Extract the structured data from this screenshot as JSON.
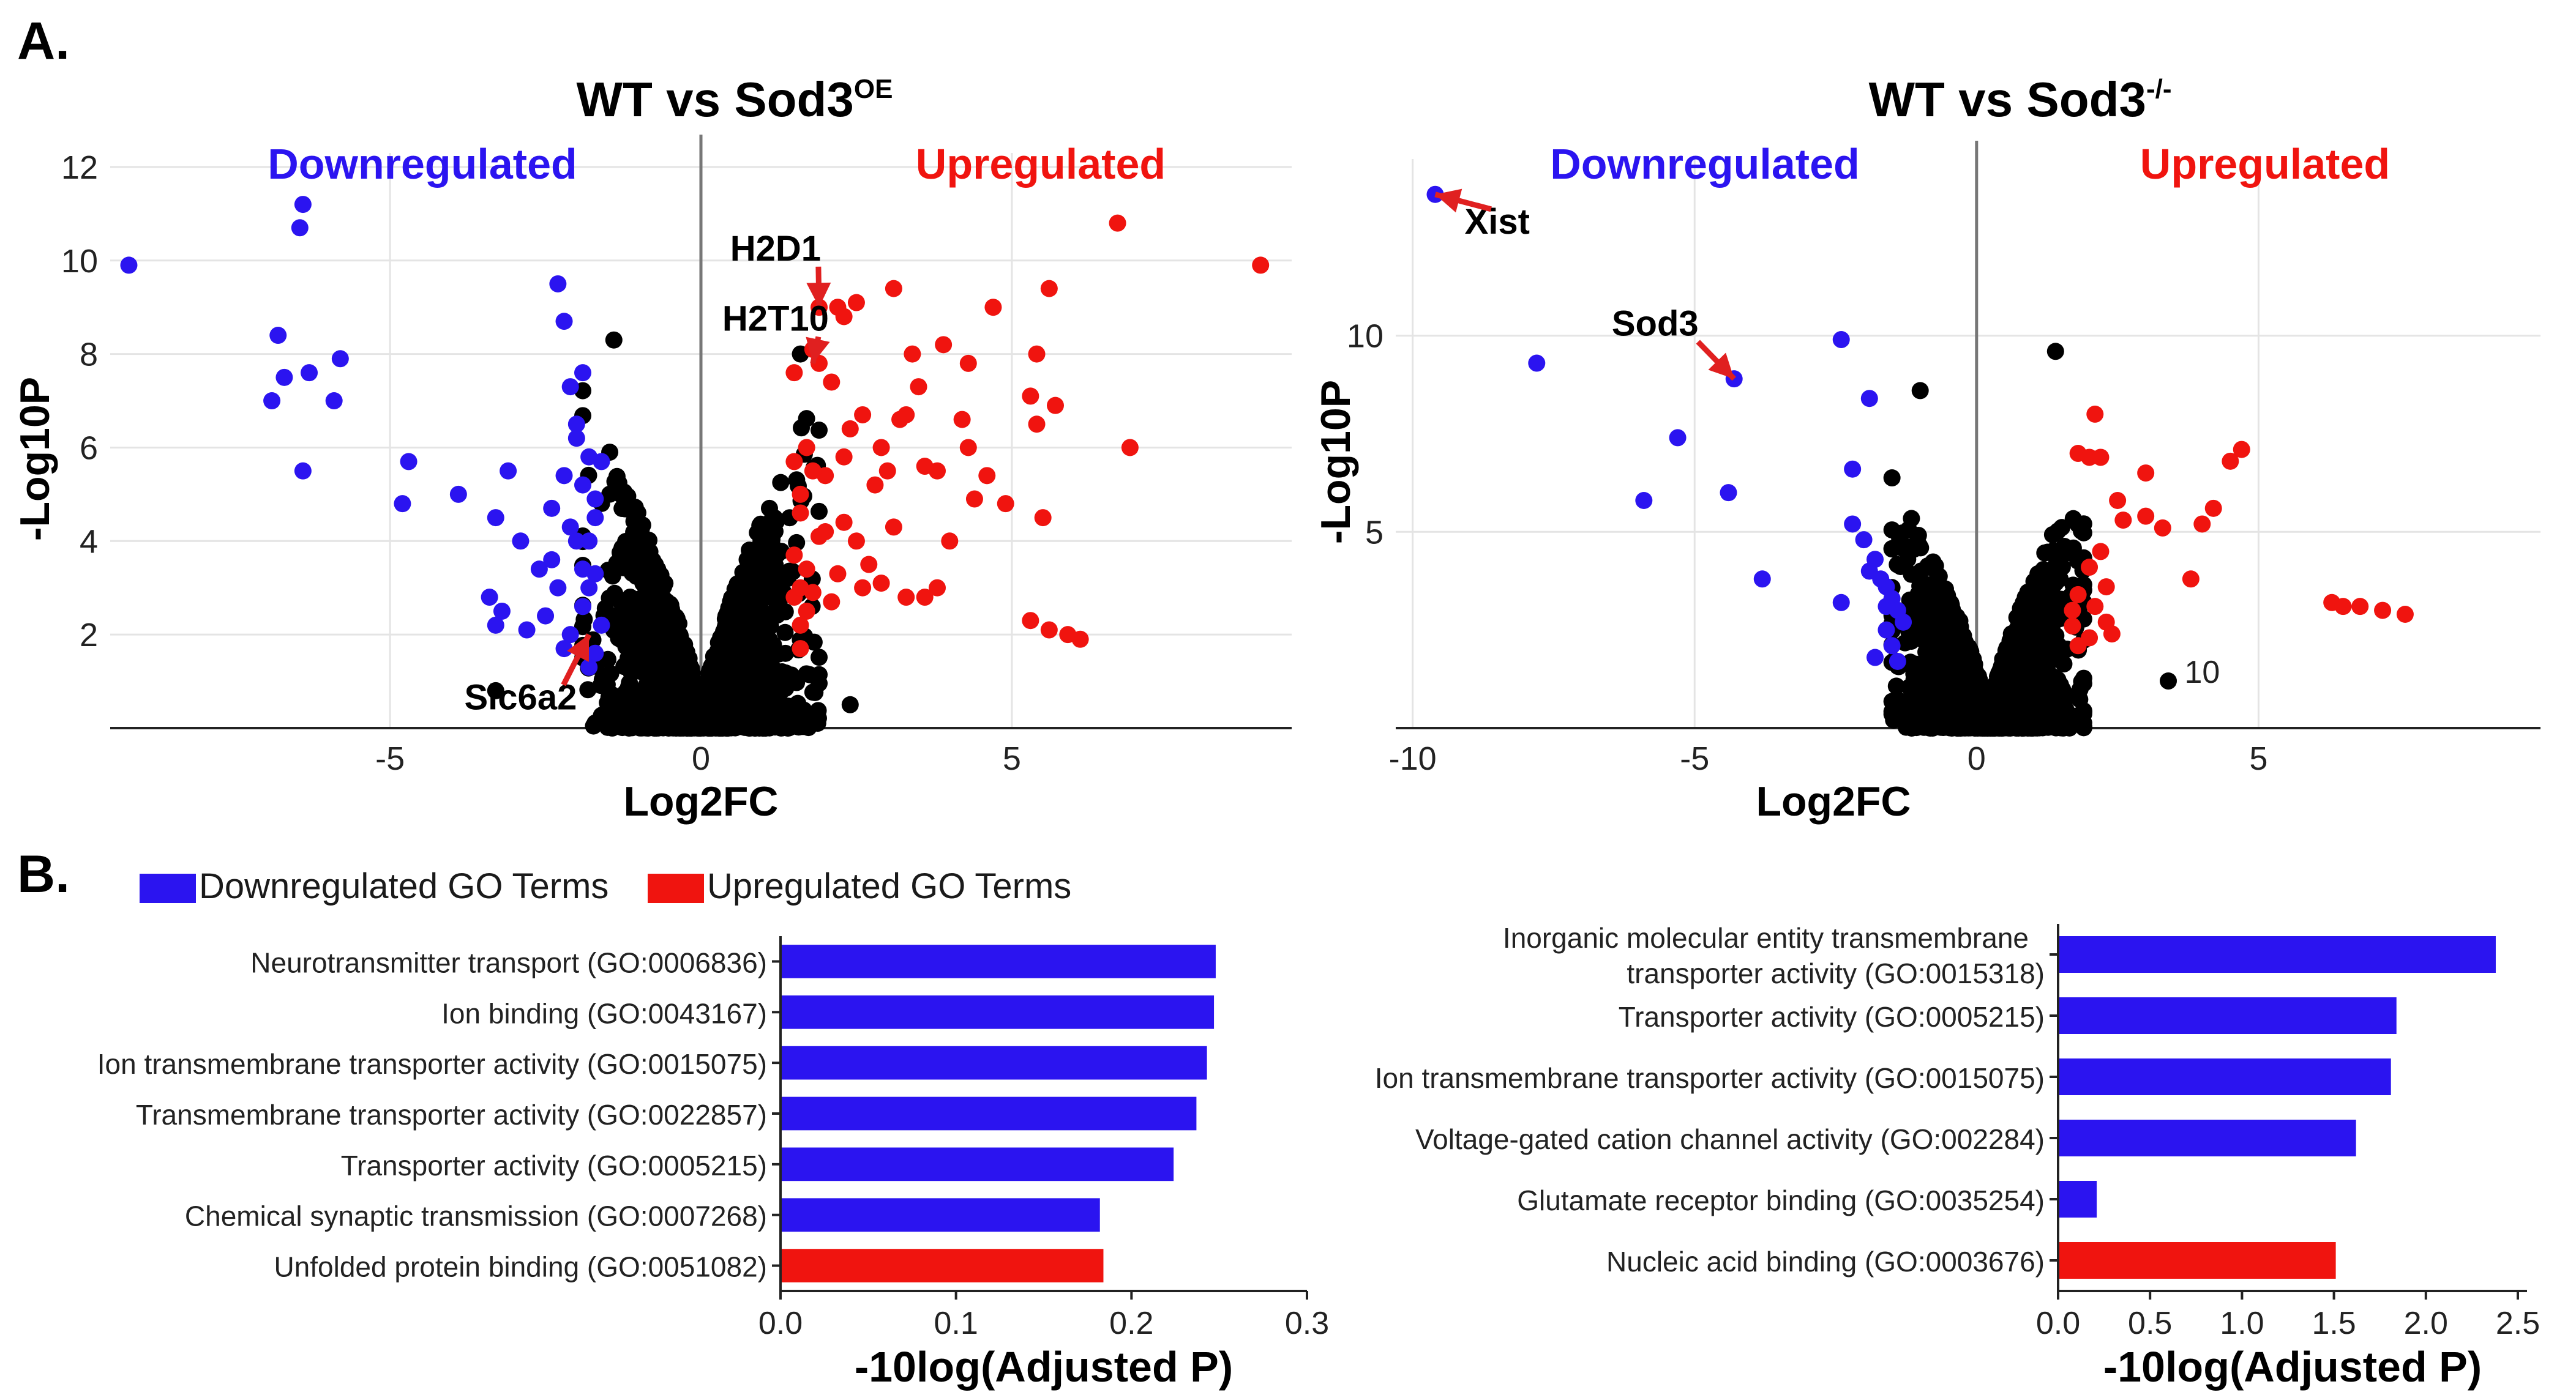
{
  "panels": {
    "a": "A.",
    "b": "B."
  },
  "legend_b": {
    "down": "Downregulated GO Terms",
    "up": "Upregulated GO Terms"
  },
  "colors": {
    "down": "#2b14f0",
    "up": "#f0140f",
    "ns": "#000000",
    "grid": "#e4e4e4",
    "arrow": "#e02020"
  },
  "chart_data": [
    {
      "id": "volcano_left",
      "type": "scatter",
      "title_main": "WT vs Sod3",
      "title_sup": "OE",
      "xlabel": "Log2FC",
      "ylabel": "-Log10P",
      "xlim": [
        -9.5,
        9.5
      ],
      "ylim": [
        0,
        12.3
      ],
      "xticks": [
        -5,
        0,
        5
      ],
      "yticks": [
        2,
        4,
        6,
        8,
        10,
        12
      ],
      "region_labels": {
        "down": "Downregulated",
        "up": "Upregulated"
      },
      "down_points": [
        [
          -9.2,
          9.9
        ],
        [
          -6.4,
          11.2
        ],
        [
          -6.45,
          10.7
        ],
        [
          -6.8,
          8.4
        ],
        [
          -6.7,
          7.5
        ],
        [
          -6.9,
          7.0
        ],
        [
          -6.3,
          7.6
        ],
        [
          -6.4,
          5.5
        ],
        [
          -5.9,
          7.0
        ],
        [
          -5.8,
          7.9
        ],
        [
          -4.8,
          4.8
        ],
        [
          -4.7,
          5.7
        ],
        [
          -3.9,
          5.0
        ],
        [
          -3.3,
          4.5
        ],
        [
          -3.1,
          5.5
        ],
        [
          -3.4,
          2.8
        ],
        [
          -3.2,
          2.5
        ],
        [
          -3.3,
          2.2
        ],
        [
          -2.6,
          3.4
        ],
        [
          -2.9,
          4.0
        ],
        [
          -2.2,
          8.7
        ],
        [
          -2.3,
          9.5
        ],
        [
          -2.8,
          2.1
        ],
        [
          -2.1,
          4.3
        ],
        [
          -2.4,
          3.6
        ],
        [
          -2.0,
          6.5
        ],
        [
          -2.1,
          7.3
        ],
        [
          -2.2,
          5.4
        ],
        [
          -1.8,
          3.0
        ],
        [
          -1.9,
          5.2
        ],
        [
          -2.0,
          6.2
        ],
        [
          -1.7,
          1.6
        ],
        [
          -2.1,
          2.0
        ],
        [
          -1.9,
          2.6
        ],
        [
          -1.8,
          4.0
        ],
        [
          -1.7,
          4.5
        ],
        [
          -1.9,
          3.4
        ],
        [
          -2.5,
          2.4
        ],
        [
          -1.9,
          7.6
        ],
        [
          -1.8,
          1.3
        ],
        [
          -1.6,
          2.2
        ],
        [
          -1.7,
          3.3
        ],
        [
          -1.6,
          5.7
        ],
        [
          -2.2,
          1.7
        ],
        [
          -1.7,
          4.9
        ],
        [
          -2.3,
          3.0
        ],
        [
          -1.8,
          5.8
        ],
        [
          -2.0,
          4.0
        ],
        [
          -2.4,
          4.7
        ]
      ],
      "up_points": [
        [
          9.0,
          9.9
        ],
        [
          6.7,
          10.8
        ],
        [
          6.9,
          6.0
        ],
        [
          5.6,
          9.4
        ],
        [
          5.4,
          8.0
        ],
        [
          5.3,
          7.1
        ],
        [
          5.7,
          6.9
        ],
        [
          5.4,
          6.5
        ],
        [
          5.5,
          4.5
        ],
        [
          5.3,
          2.3
        ],
        [
          5.6,
          2.1
        ],
        [
          5.9,
          2.0
        ],
        [
          6.1,
          1.9
        ],
        [
          4.4,
          4.9
        ],
        [
          4.6,
          5.4
        ],
        [
          4.9,
          4.8
        ],
        [
          4.7,
          9.0
        ],
        [
          4.2,
          6.6
        ],
        [
          4.3,
          7.8
        ],
        [
          3.9,
          8.2
        ],
        [
          3.8,
          5.5
        ],
        [
          3.6,
          5.6
        ],
        [
          3.5,
          7.3
        ],
        [
          3.3,
          6.7
        ],
        [
          3.2,
          6.6
        ],
        [
          3.1,
          9.4
        ],
        [
          2.9,
          6.0
        ],
        [
          3.0,
          5.5
        ],
        [
          2.8,
          5.2
        ],
        [
          3.4,
          8.0
        ],
        [
          3.3,
          2.8
        ],
        [
          3.1,
          4.3
        ],
        [
          2.7,
          3.5
        ],
        [
          3.6,
          2.8
        ],
        [
          2.6,
          6.7
        ],
        [
          2.5,
          9.1
        ],
        [
          2.3,
          8.8
        ],
        [
          2.2,
          9.0
        ],
        [
          2.4,
          6.4
        ],
        [
          2.3,
          5.8
        ],
        [
          2.1,
          7.4
        ],
        [
          2.2,
          3.3
        ],
        [
          2.0,
          5.4
        ],
        [
          2.0,
          4.2
        ],
        [
          1.9,
          9.0
        ],
        [
          1.8,
          8.1
        ],
        [
          1.9,
          7.8
        ],
        [
          1.8,
          5.5
        ],
        [
          1.7,
          3.4
        ],
        [
          1.7,
          6.0
        ],
        [
          1.6,
          4.6
        ],
        [
          1.6,
          2.2
        ],
        [
          1.5,
          5.7
        ],
        [
          1.5,
          3.7
        ],
        [
          1.6,
          1.7
        ],
        [
          1.7,
          2.5
        ],
        [
          1.5,
          7.6
        ],
        [
          1.9,
          4.1
        ],
        [
          1.8,
          2.9
        ],
        [
          1.6,
          5.0
        ],
        [
          1.5,
          2.8
        ],
        [
          1.6,
          3.0
        ],
        [
          2.5,
          4.0
        ],
        [
          2.1,
          2.7
        ],
        [
          2.9,
          3.1
        ],
        [
          2.3,
          4.4
        ],
        [
          3.8,
          3.0
        ],
        [
          4.0,
          4.0
        ],
        [
          4.3,
          6.0
        ],
        [
          2.6,
          3.0
        ]
      ],
      "ns_points": [
        [
          -3.3,
          0.8
        ],
        [
          2.4,
          0.5
        ],
        [
          1.6,
          8.0
        ],
        [
          -1.4,
          8.3
        ]
      ],
      "annotations": [
        {
          "label": "H2D1",
          "point": [
            1.9,
            9.0
          ],
          "text_at": [
            1.2,
            10.0
          ]
        },
        {
          "label": "H2T10",
          "point": [
            1.8,
            7.8
          ],
          "text_at": [
            1.2,
            8.5
          ]
        },
        {
          "label": "Slc6a2",
          "point": [
            -1.8,
            2.0
          ],
          "text_at": [
            -2.9,
            0.4
          ]
        }
      ]
    },
    {
      "id": "volcano_right",
      "type": "scatter",
      "title_main": "WT vs Sod3",
      "title_sup": "-/-",
      "xlabel": "Log2FC",
      "ylabel": "-Log10P",
      "xlim": [
        -10.3,
        10.0
      ],
      "ylim": [
        0,
        14.5
      ],
      "xticks": [
        -10,
        -5,
        0,
        5
      ],
      "yticks": [
        5,
        10
      ],
      "region_labels": {
        "down": "Downregulated",
        "up": "Upregulated"
      },
      "down_points": [
        [
          -9.6,
          13.6
        ],
        [
          -7.8,
          9.3
        ],
        [
          -4.3,
          8.9
        ],
        [
          -2.4,
          9.9
        ],
        [
          -1.9,
          8.4
        ],
        [
          -5.3,
          7.4
        ],
        [
          -4.4,
          6.0
        ],
        [
          -5.9,
          5.8
        ],
        [
          -3.8,
          3.8
        ],
        [
          -2.4,
          3.2
        ],
        [
          -2.2,
          6.6
        ],
        [
          -2.2,
          5.2
        ],
        [
          -2.0,
          4.8
        ],
        [
          -1.8,
          4.3
        ],
        [
          -1.6,
          3.6
        ],
        [
          -1.5,
          3.3
        ],
        [
          -1.7,
          3.8
        ],
        [
          -1.9,
          4.0
        ],
        [
          -1.6,
          2.5
        ],
        [
          -1.4,
          3.0
        ],
        [
          -1.8,
          1.8
        ],
        [
          -1.5,
          2.1
        ],
        [
          -1.3,
          2.7
        ],
        [
          -1.6,
          3.1
        ],
        [
          -1.4,
          1.7
        ]
      ],
      "up_points": [
        [
          2.1,
          8.0
        ],
        [
          1.8,
          7.0
        ],
        [
          2.0,
          6.9
        ],
        [
          2.2,
          6.9
        ],
        [
          2.5,
          5.8
        ],
        [
          2.6,
          5.3
        ],
        [
          3.0,
          6.5
        ],
        [
          3.3,
          5.1
        ],
        [
          3.0,
          5.4
        ],
        [
          4.2,
          5.6
        ],
        [
          4.7,
          7.1
        ],
        [
          4.5,
          6.8
        ],
        [
          4.0,
          5.2
        ],
        [
          3.8,
          3.8
        ],
        [
          6.3,
          3.2
        ],
        [
          6.5,
          3.1
        ],
        [
          6.8,
          3.1
        ],
        [
          7.2,
          3.0
        ],
        [
          7.6,
          2.9
        ],
        [
          2.2,
          4.5
        ],
        [
          2.0,
          4.1
        ],
        [
          2.3,
          3.6
        ],
        [
          2.1,
          3.1
        ],
        [
          1.8,
          3.4
        ],
        [
          1.7,
          2.6
        ],
        [
          2.0,
          2.3
        ],
        [
          2.4,
          2.4
        ],
        [
          1.8,
          2.1
        ],
        [
          2.3,
          2.7
        ],
        [
          1.7,
          3.0
        ]
      ],
      "ns_points": [
        [
          3.4,
          1.2
        ],
        [
          -1.0,
          8.6
        ],
        [
          1.4,
          9.6
        ]
      ],
      "point_labels": [
        {
          "label": "10",
          "point": [
            3.6,
            1.4
          ]
        }
      ],
      "annotations": [
        {
          "label": "Xist",
          "point": [
            -9.6,
            13.6
          ],
          "text_at": [
            -8.5,
            12.6
          ]
        },
        {
          "label": "Sod3",
          "point": [
            -4.3,
            8.9
          ],
          "text_at": [
            -5.7,
            10.0
          ]
        }
      ]
    },
    {
      "id": "go_left",
      "type": "bar",
      "orientation": "horizontal",
      "xlabel": "-10log(Adjusted P)",
      "xlim": [
        0,
        0.3
      ],
      "xticks": [
        "0.0",
        "0.1",
        "0.2",
        "0.3"
      ],
      "categories": [
        "Neurotransmitter transport (GO:0006836)",
        "Ion binding (GO:0043167)",
        "Ion transmembrane transporter activity (GO:0015075)",
        "Transmembrane transporter activity (GO:0022857)",
        "Transporter activity (GO:0005215)",
        "Chemical synaptic transmission (GO:0007268)",
        "Unfolded protein binding (GO:0051082)"
      ],
      "values": [
        0.248,
        0.247,
        0.243,
        0.237,
        0.224,
        0.182,
        0.184
      ],
      "groups": [
        "down",
        "down",
        "down",
        "down",
        "down",
        "down",
        "up"
      ]
    },
    {
      "id": "go_right",
      "type": "bar",
      "orientation": "horizontal",
      "xlabel": "-10log(Adjusted P)",
      "xlim": [
        0,
        2.55
      ],
      "xticks": [
        "0.0",
        "0.5",
        "1.0",
        "1.5",
        "2.0",
        "2.5"
      ],
      "categories": [
        "Inorganic molecular entity transmembrane|transporter activity (GO:0015318)",
        "Transporter activity (GO:0005215)",
        "Ion transmembrane transporter activity (GO:0015075)",
        "Voltage-gated cation channel activity (GO:002284)",
        "Glutamate receptor binding (GO:0035254)",
        "Nucleic acid binding (GO:0003676)"
      ],
      "values": [
        2.38,
        1.84,
        1.81,
        1.62,
        0.21,
        1.51
      ],
      "groups": [
        "down",
        "down",
        "down",
        "down",
        "down",
        "up"
      ]
    }
  ]
}
